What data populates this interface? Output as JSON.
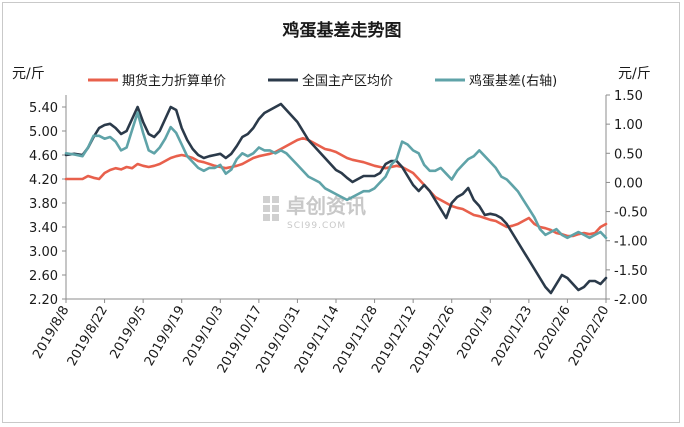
{
  "chart_data": {
    "type": "line",
    "title": "鸡蛋基差走势图",
    "left_unit": "元/斤",
    "right_unit": "元/斤",
    "ylim_left": [
      2.2,
      5.6
    ],
    "ylim_right": [
      -2.0,
      1.5
    ],
    "yticks_left": [
      "5.40",
      "5.00",
      "4.60",
      "4.20",
      "3.80",
      "3.40",
      "3.00",
      "2.60",
      "2.20"
    ],
    "yticks_right": [
      "1.50",
      "1.00",
      "0.50",
      "0.00",
      "-0.50",
      "-1.00",
      "-1.50",
      "-2.00"
    ],
    "x_labels": [
      "2019/8/8",
      "2019/8/22",
      "2019/9/5",
      "2019/9/19",
      "2019/10/3",
      "2019/10/17",
      "2019/10/31",
      "2019/11/14",
      "2019/11/28",
      "2019/12/12",
      "2019/12/26",
      "2020/1/9",
      "2020/1/23",
      "2020/2/6",
      "2020/2/20"
    ],
    "x_range_days": [
      0,
      196
    ],
    "watermark": {
      "name": "卓创资讯",
      "site": "SCI99.COM"
    },
    "colors": {
      "price": "#e8604c",
      "spot": "#2b3a4a",
      "basis": "#5fa3a8"
    },
    "series": [
      {
        "name": "期货主力折算单价",
        "axis": "left",
        "color": "#e8604c",
        "points": [
          [
            0,
            4.2
          ],
          [
            3,
            4.2
          ],
          [
            6,
            4.2
          ],
          [
            8,
            4.25
          ],
          [
            10,
            4.22
          ],
          [
            12,
            4.2
          ],
          [
            14,
            4.3
          ],
          [
            16,
            4.35
          ],
          [
            18,
            4.38
          ],
          [
            20,
            4.36
          ],
          [
            22,
            4.4
          ],
          [
            24,
            4.38
          ],
          [
            26,
            4.45
          ],
          [
            28,
            4.42
          ],
          [
            30,
            4.4
          ],
          [
            32,
            4.42
          ],
          [
            34,
            4.45
          ],
          [
            36,
            4.5
          ],
          [
            38,
            4.55
          ],
          [
            40,
            4.58
          ],
          [
            42,
            4.6
          ],
          [
            44,
            4.58
          ],
          [
            46,
            4.55
          ],
          [
            48,
            4.5
          ],
          [
            50,
            4.48
          ],
          [
            52,
            4.45
          ],
          [
            54,
            4.42
          ],
          [
            56,
            4.4
          ],
          [
            58,
            4.38
          ],
          [
            60,
            4.4
          ],
          [
            62,
            4.42
          ],
          [
            64,
            4.45
          ],
          [
            66,
            4.5
          ],
          [
            68,
            4.55
          ],
          [
            70,
            4.58
          ],
          [
            72,
            4.6
          ],
          [
            74,
            4.62
          ],
          [
            76,
            4.65
          ],
          [
            78,
            4.7
          ],
          [
            80,
            4.75
          ],
          [
            82,
            4.8
          ],
          [
            84,
            4.85
          ],
          [
            86,
            4.88
          ],
          [
            88,
            4.85
          ],
          [
            90,
            4.8
          ],
          [
            92,
            4.75
          ],
          [
            94,
            4.7
          ],
          [
            96,
            4.68
          ],
          [
            98,
            4.65
          ],
          [
            100,
            4.6
          ],
          [
            102,
            4.55
          ],
          [
            104,
            4.52
          ],
          [
            106,
            4.5
          ],
          [
            108,
            4.48
          ],
          [
            110,
            4.45
          ],
          [
            112,
            4.42
          ],
          [
            114,
            4.4
          ],
          [
            116,
            4.38
          ],
          [
            118,
            4.4
          ],
          [
            120,
            4.42
          ],
          [
            122,
            4.4
          ],
          [
            124,
            4.35
          ],
          [
            126,
            4.3
          ],
          [
            128,
            4.2
          ],
          [
            130,
            4.1
          ],
          [
            132,
            4.0
          ],
          [
            134,
            3.9
          ],
          [
            136,
            3.85
          ],
          [
            138,
            3.8
          ],
          [
            140,
            3.75
          ],
          [
            142,
            3.72
          ],
          [
            144,
            3.7
          ],
          [
            146,
            3.65
          ],
          [
            148,
            3.6
          ],
          [
            150,
            3.58
          ],
          [
            152,
            3.55
          ],
          [
            154,
            3.52
          ],
          [
            156,
            3.5
          ],
          [
            158,
            3.45
          ],
          [
            160,
            3.4
          ],
          [
            162,
            3.42
          ],
          [
            164,
            3.45
          ],
          [
            166,
            3.5
          ],
          [
            168,
            3.55
          ],
          [
            170,
            3.45
          ],
          [
            172,
            3.4
          ],
          [
            174,
            3.38
          ],
          [
            176,
            3.35
          ],
          [
            178,
            3.3
          ],
          [
            180,
            3.28
          ],
          [
            182,
            3.25
          ],
          [
            184,
            3.25
          ],
          [
            186,
            3.28
          ],
          [
            188,
            3.3
          ],
          [
            190,
            3.28
          ],
          [
            192,
            3.3
          ],
          [
            194,
            3.4
          ],
          [
            196,
            3.45
          ]
        ]
      },
      {
        "name": "全国主产区均价",
        "axis": "left",
        "color": "#2b3a4a",
        "points": [
          [
            0,
            4.6
          ],
          [
            3,
            4.62
          ],
          [
            6,
            4.6
          ],
          [
            8,
            4.72
          ],
          [
            10,
            4.9
          ],
          [
            12,
            5.05
          ],
          [
            14,
            5.1
          ],
          [
            16,
            5.12
          ],
          [
            18,
            5.05
          ],
          [
            20,
            4.95
          ],
          [
            22,
            5.0
          ],
          [
            24,
            5.2
          ],
          [
            26,
            5.4
          ],
          [
            28,
            5.15
          ],
          [
            30,
            4.95
          ],
          [
            32,
            4.9
          ],
          [
            34,
            5.0
          ],
          [
            36,
            5.2
          ],
          [
            38,
            5.4
          ],
          [
            40,
            5.35
          ],
          [
            42,
            5.05
          ],
          [
            44,
            4.85
          ],
          [
            46,
            4.7
          ],
          [
            48,
            4.6
          ],
          [
            50,
            4.55
          ],
          [
            52,
            4.58
          ],
          [
            54,
            4.6
          ],
          [
            56,
            4.62
          ],
          [
            58,
            4.55
          ],
          [
            60,
            4.62
          ],
          [
            62,
            4.75
          ],
          [
            64,
            4.9
          ],
          [
            66,
            4.95
          ],
          [
            68,
            5.05
          ],
          [
            70,
            5.2
          ],
          [
            72,
            5.3
          ],
          [
            74,
            5.35
          ],
          [
            76,
            5.4
          ],
          [
            78,
            5.45
          ],
          [
            80,
            5.35
          ],
          [
            82,
            5.25
          ],
          [
            84,
            5.15
          ],
          [
            86,
            5.0
          ],
          [
            88,
            4.85
          ],
          [
            90,
            4.75
          ],
          [
            92,
            4.65
          ],
          [
            94,
            4.55
          ],
          [
            96,
            4.45
          ],
          [
            98,
            4.35
          ],
          [
            100,
            4.3
          ],
          [
            102,
            4.22
          ],
          [
            104,
            4.15
          ],
          [
            106,
            4.2
          ],
          [
            108,
            4.25
          ],
          [
            110,
            4.25
          ],
          [
            112,
            4.25
          ],
          [
            114,
            4.3
          ],
          [
            116,
            4.45
          ],
          [
            118,
            4.5
          ],
          [
            120,
            4.5
          ],
          [
            122,
            4.4
          ],
          [
            124,
            4.25
          ],
          [
            126,
            4.1
          ],
          [
            128,
            4.0
          ],
          [
            130,
            4.1
          ],
          [
            132,
            4.0
          ],
          [
            134,
            3.85
          ],
          [
            136,
            3.7
          ],
          [
            138,
            3.55
          ],
          [
            140,
            3.8
          ],
          [
            142,
            3.9
          ],
          [
            144,
            3.95
          ],
          [
            146,
            4.05
          ],
          [
            148,
            3.85
          ],
          [
            150,
            3.75
          ],
          [
            152,
            3.6
          ],
          [
            154,
            3.62
          ],
          [
            156,
            3.6
          ],
          [
            158,
            3.55
          ],
          [
            160,
            3.45
          ],
          [
            162,
            3.3
          ],
          [
            164,
            3.15
          ],
          [
            166,
            3.0
          ],
          [
            168,
            2.85
          ],
          [
            170,
            2.7
          ],
          [
            172,
            2.55
          ],
          [
            174,
            2.4
          ],
          [
            176,
            2.3
          ],
          [
            178,
            2.45
          ],
          [
            180,
            2.6
          ],
          [
            182,
            2.55
          ],
          [
            184,
            2.45
          ],
          [
            186,
            2.35
          ],
          [
            188,
            2.4
          ],
          [
            190,
            2.5
          ],
          [
            192,
            2.5
          ],
          [
            194,
            2.45
          ],
          [
            196,
            2.55
          ]
        ]
      },
      {
        "name": "鸡蛋基差(右轴)",
        "axis": "right",
        "color": "#5fa3a8",
        "points": [
          [
            0,
            0.5
          ],
          [
            3,
            0.48
          ],
          [
            6,
            0.45
          ],
          [
            8,
            0.6
          ],
          [
            10,
            0.8
          ],
          [
            12,
            0.8
          ],
          [
            14,
            0.75
          ],
          [
            16,
            0.78
          ],
          [
            18,
            0.7
          ],
          [
            20,
            0.55
          ],
          [
            22,
            0.6
          ],
          [
            24,
            0.9
          ],
          [
            26,
            1.2
          ],
          [
            28,
            0.85
          ],
          [
            30,
            0.55
          ],
          [
            32,
            0.5
          ],
          [
            34,
            0.6
          ],
          [
            36,
            0.75
          ],
          [
            38,
            0.95
          ],
          [
            40,
            0.85
          ],
          [
            42,
            0.65
          ],
          [
            44,
            0.45
          ],
          [
            46,
            0.35
          ],
          [
            48,
            0.25
          ],
          [
            50,
            0.2
          ],
          [
            52,
            0.25
          ],
          [
            54,
            0.25
          ],
          [
            56,
            0.3
          ],
          [
            58,
            0.15
          ],
          [
            60,
            0.22
          ],
          [
            62,
            0.4
          ],
          [
            64,
            0.5
          ],
          [
            66,
            0.45
          ],
          [
            68,
            0.5
          ],
          [
            70,
            0.6
          ],
          [
            72,
            0.55
          ],
          [
            74,
            0.55
          ],
          [
            76,
            0.5
          ],
          [
            78,
            0.55
          ],
          [
            80,
            0.5
          ],
          [
            82,
            0.4
          ],
          [
            84,
            0.3
          ],
          [
            86,
            0.2
          ],
          [
            88,
            0.1
          ],
          [
            90,
            0.05
          ],
          [
            92,
            0.0
          ],
          [
            94,
            -0.1
          ],
          [
            96,
            -0.15
          ],
          [
            98,
            -0.2
          ],
          [
            100,
            -0.25
          ],
          [
            102,
            -0.3
          ],
          [
            104,
            -0.25
          ],
          [
            106,
            -0.2
          ],
          [
            108,
            -0.15
          ],
          [
            110,
            -0.15
          ],
          [
            112,
            -0.1
          ],
          [
            114,
            0.0
          ],
          [
            116,
            0.1
          ],
          [
            118,
            0.3
          ],
          [
            120,
            0.4
          ],
          [
            122,
            0.7
          ],
          [
            124,
            0.65
          ],
          [
            126,
            0.55
          ],
          [
            128,
            0.5
          ],
          [
            130,
            0.3
          ],
          [
            132,
            0.2
          ],
          [
            134,
            0.2
          ],
          [
            136,
            0.25
          ],
          [
            138,
            0.15
          ],
          [
            140,
            0.05
          ],
          [
            142,
            0.2
          ],
          [
            144,
            0.3
          ],
          [
            146,
            0.4
          ],
          [
            148,
            0.45
          ],
          [
            150,
            0.55
          ],
          [
            152,
            0.45
          ],
          [
            154,
            0.35
          ],
          [
            156,
            0.25
          ],
          [
            158,
            0.1
          ],
          [
            160,
            0.05
          ],
          [
            162,
            -0.05
          ],
          [
            164,
            -0.15
          ],
          [
            166,
            -0.3
          ],
          [
            168,
            -0.45
          ],
          [
            170,
            -0.6
          ],
          [
            172,
            -0.8
          ],
          [
            174,
            -0.9
          ],
          [
            176,
            -0.85
          ],
          [
            178,
            -0.8
          ],
          [
            180,
            -0.9
          ],
          [
            182,
            -0.95
          ],
          [
            184,
            -0.9
          ],
          [
            186,
            -0.85
          ],
          [
            188,
            -0.9
          ],
          [
            190,
            -0.95
          ],
          [
            192,
            -0.9
          ],
          [
            194,
            -0.85
          ],
          [
            196,
            -0.95
          ]
        ]
      }
    ]
  }
}
